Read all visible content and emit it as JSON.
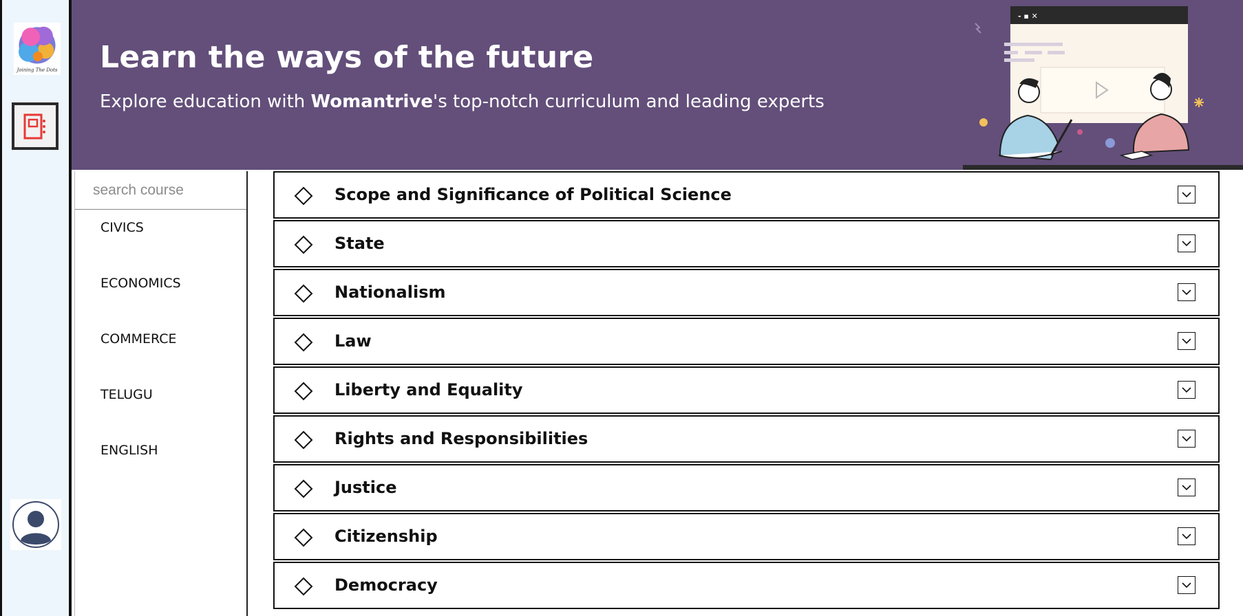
{
  "sidebar": {
    "logo_text": "Joining The Dots",
    "items": [
      {
        "icon": "notebook-icon",
        "color": "#e53935"
      },
      {
        "icon": "user-avatar-icon",
        "color": "#3b4a6b"
      }
    ]
  },
  "banner": {
    "title": "Learn the ways of the future",
    "subtitle_pre": "Explore education with ",
    "subtitle_brand": "Womantrive",
    "subtitle_post": "'s top-notch curriculum and leading experts",
    "background": "#634f7a"
  },
  "search": {
    "placeholder": "search course"
  },
  "courses": [
    "CIVICS",
    "ECONOMICS",
    "COMMERCE",
    "TELUGU",
    "ENGLISH"
  ],
  "topics": [
    "Scope and Significance of Political Science",
    "State",
    "Nationalism",
    "Law",
    "Liberty and Equality",
    "Rights and Responsibilities",
    "Justice",
    "Citizenship",
    "Democracy"
  ]
}
